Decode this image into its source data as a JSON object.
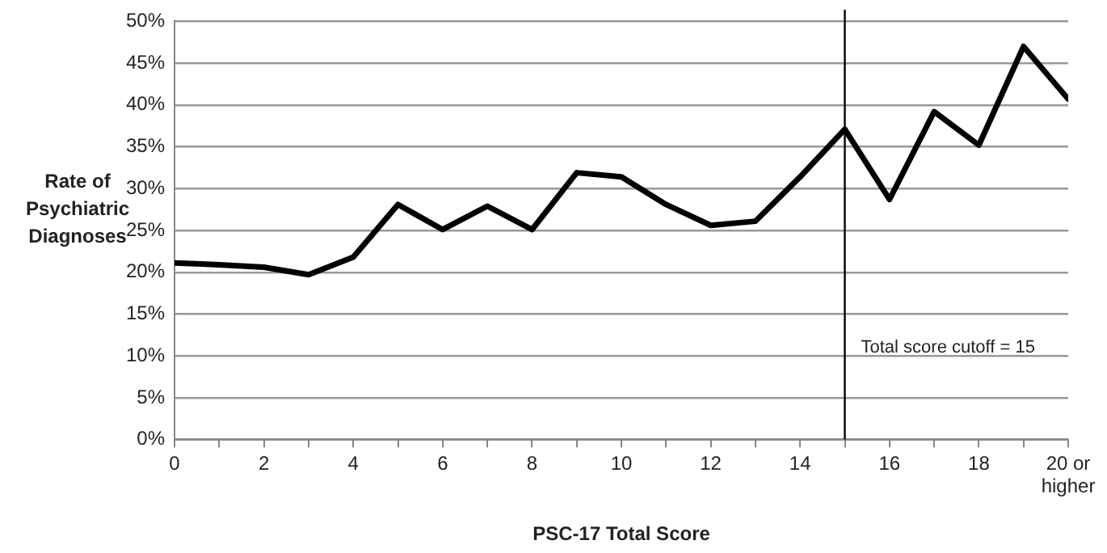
{
  "chart_data": {
    "type": "line",
    "xlabel": "PSC-17 Total Score",
    "ylabel": "Rate of Psychiatric Diagnoses",
    "x": [
      0,
      1,
      2,
      3,
      4,
      5,
      6,
      7,
      8,
      9,
      10,
      11,
      12,
      13,
      14,
      15,
      16,
      17,
      18,
      19,
      20
    ],
    "series": [
      {
        "color": "#000000",
        "values": [
          21.1,
          20.9,
          20.6,
          19.7,
          21.8,
          28.1,
          25.1,
          27.9,
          25.1,
          31.9,
          31.4,
          28.1,
          25.6,
          26.1,
          31.4,
          37.1,
          28.7,
          39.2,
          35.2,
          47.0,
          40.7
        ]
      }
    ],
    "xlim": [
      0,
      20
    ],
    "xticks": [
      0,
      {
        "value": 1,
        "label": null
      },
      2,
      {
        "value": 3,
        "label": null
      },
      4,
      {
        "value": 5,
        "label": null
      },
      6,
      {
        "value": 7,
        "label": null
      },
      8,
      {
        "value": 9,
        "label": null
      },
      10,
      {
        "value": 11,
        "label": null
      },
      12,
      {
        "value": 13,
        "label": null
      },
      14,
      {
        "value": 15,
        "label": null
      },
      16,
      {
        "value": 17,
        "label": null
      },
      18,
      {
        "value": 19,
        "label": null
      },
      {
        "value": 20,
        "label": "20 or higher"
      }
    ],
    "ylim": [
      0,
      50
    ],
    "yticks": [
      {
        "value": 0,
        "label": "0%"
      },
      {
        "value": 5,
        "label": "5%"
      },
      {
        "value": 10,
        "label": "10%"
      },
      {
        "value": 15,
        "label": "15%"
      },
      {
        "value": 20,
        "label": "20%"
      },
      {
        "value": 25,
        "label": "25%"
      },
      {
        "value": 30,
        "label": "30%"
      },
      {
        "value": 35,
        "label": "35%"
      },
      {
        "value": 40,
        "label": "40%"
      },
      {
        "value": 45,
        "label": "45%"
      },
      {
        "value": 50,
        "label": "50%"
      }
    ],
    "ref_lines": [
      {
        "axis": "x",
        "value": 15,
        "label": "Total score cutoff = 15",
        "color": "#000000"
      }
    ],
    "grid": "y",
    "legend": false,
    "marker": "none",
    "line_style": "solid"
  }
}
